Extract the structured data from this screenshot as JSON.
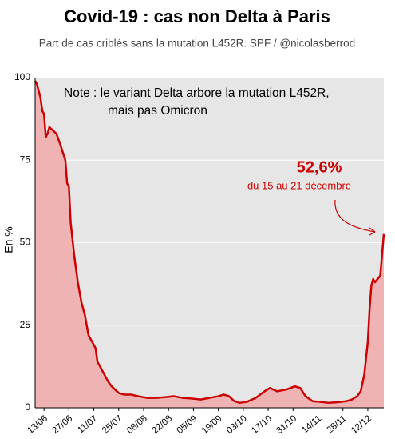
{
  "chart_data": {
    "type": "area",
    "title": "Covid-19 : cas non Delta à Paris",
    "subtitle": "Part de cas criblés sans la mutation L452R. SPF / @nicolasberrod",
    "y_label": "En %",
    "note": [
      "Note : le variant Delta arbore la mutation L452R,",
      "mais pas Omicron"
    ],
    "annotations": [
      "52,6%",
      "du 15 au 21 décembre"
    ],
    "x": [
      "08/06",
      "09/06",
      "11/06",
      "12/06",
      "13/06",
      "14/06",
      "15/06",
      "16/06",
      "18/06",
      "20/06",
      "22/06",
      "25/06",
      "26/06",
      "27/06",
      "28/06",
      "30/06",
      "02/07",
      "04/07",
      "06/07",
      "08/07",
      "09/07",
      "11/07",
      "12/07",
      "13/07",
      "15/07",
      "17/07",
      "19/07",
      "21/07",
      "23/07",
      "25/07",
      "28/07",
      "01/08",
      "05/08",
      "10/08",
      "15/08",
      "20/08",
      "25/08",
      "30/08",
      "04/09",
      "09/09",
      "14/09",
      "19/09",
      "22/09",
      "25/09",
      "28/09",
      "01/10",
      "05/10",
      "10/10",
      "15/10",
      "18/10",
      "22/10",
      "27/10",
      "01/11",
      "04/11",
      "07/11",
      "11/11",
      "15/11",
      "20/11",
      "25/11",
      "30/11",
      "03/12",
      "06/12",
      "08/12",
      "10/12",
      "12/12",
      "13/12",
      "14/12",
      "15/12",
      "16/12",
      "19/12",
      "21/12"
    ],
    "values": [
      99,
      98,
      94,
      90,
      89,
      82,
      83,
      85,
      84,
      83,
      80,
      75,
      68,
      67,
      56,
      46,
      38,
      32,
      28,
      22,
      21,
      19,
      18,
      14,
      12,
      10,
      8,
      6.5,
      5.5,
      4.5,
      4,
      4,
      3.5,
      3,
      3,
      3.2,
      3.5,
      3,
      2.8,
      2.5,
      3,
      3.5,
      4,
      3.5,
      2,
      1.5,
      1.8,
      3,
      5,
      6,
      5,
      5.5,
      6.5,
      6,
      3.5,
      2,
      1.8,
      1.5,
      1.7,
      2,
      2.5,
      3.5,
      5,
      10,
      20,
      30,
      37,
      39,
      38,
      40,
      52.6
    ],
    "color": "#cc0000",
    "fill": "#f0b3b3",
    "ylim": [
      0,
      100
    ],
    "yticks": [
      0,
      25,
      50,
      75,
      100
    ],
    "grid": true,
    "xticks": [
      "13/06",
      "27/06",
      "11/07",
      "25/07",
      "08/08",
      "22/08",
      "05/09",
      "19/09",
      "03/10",
      "17/10",
      "31/10",
      "14/11",
      "28/11",
      "12/12"
    ]
  }
}
